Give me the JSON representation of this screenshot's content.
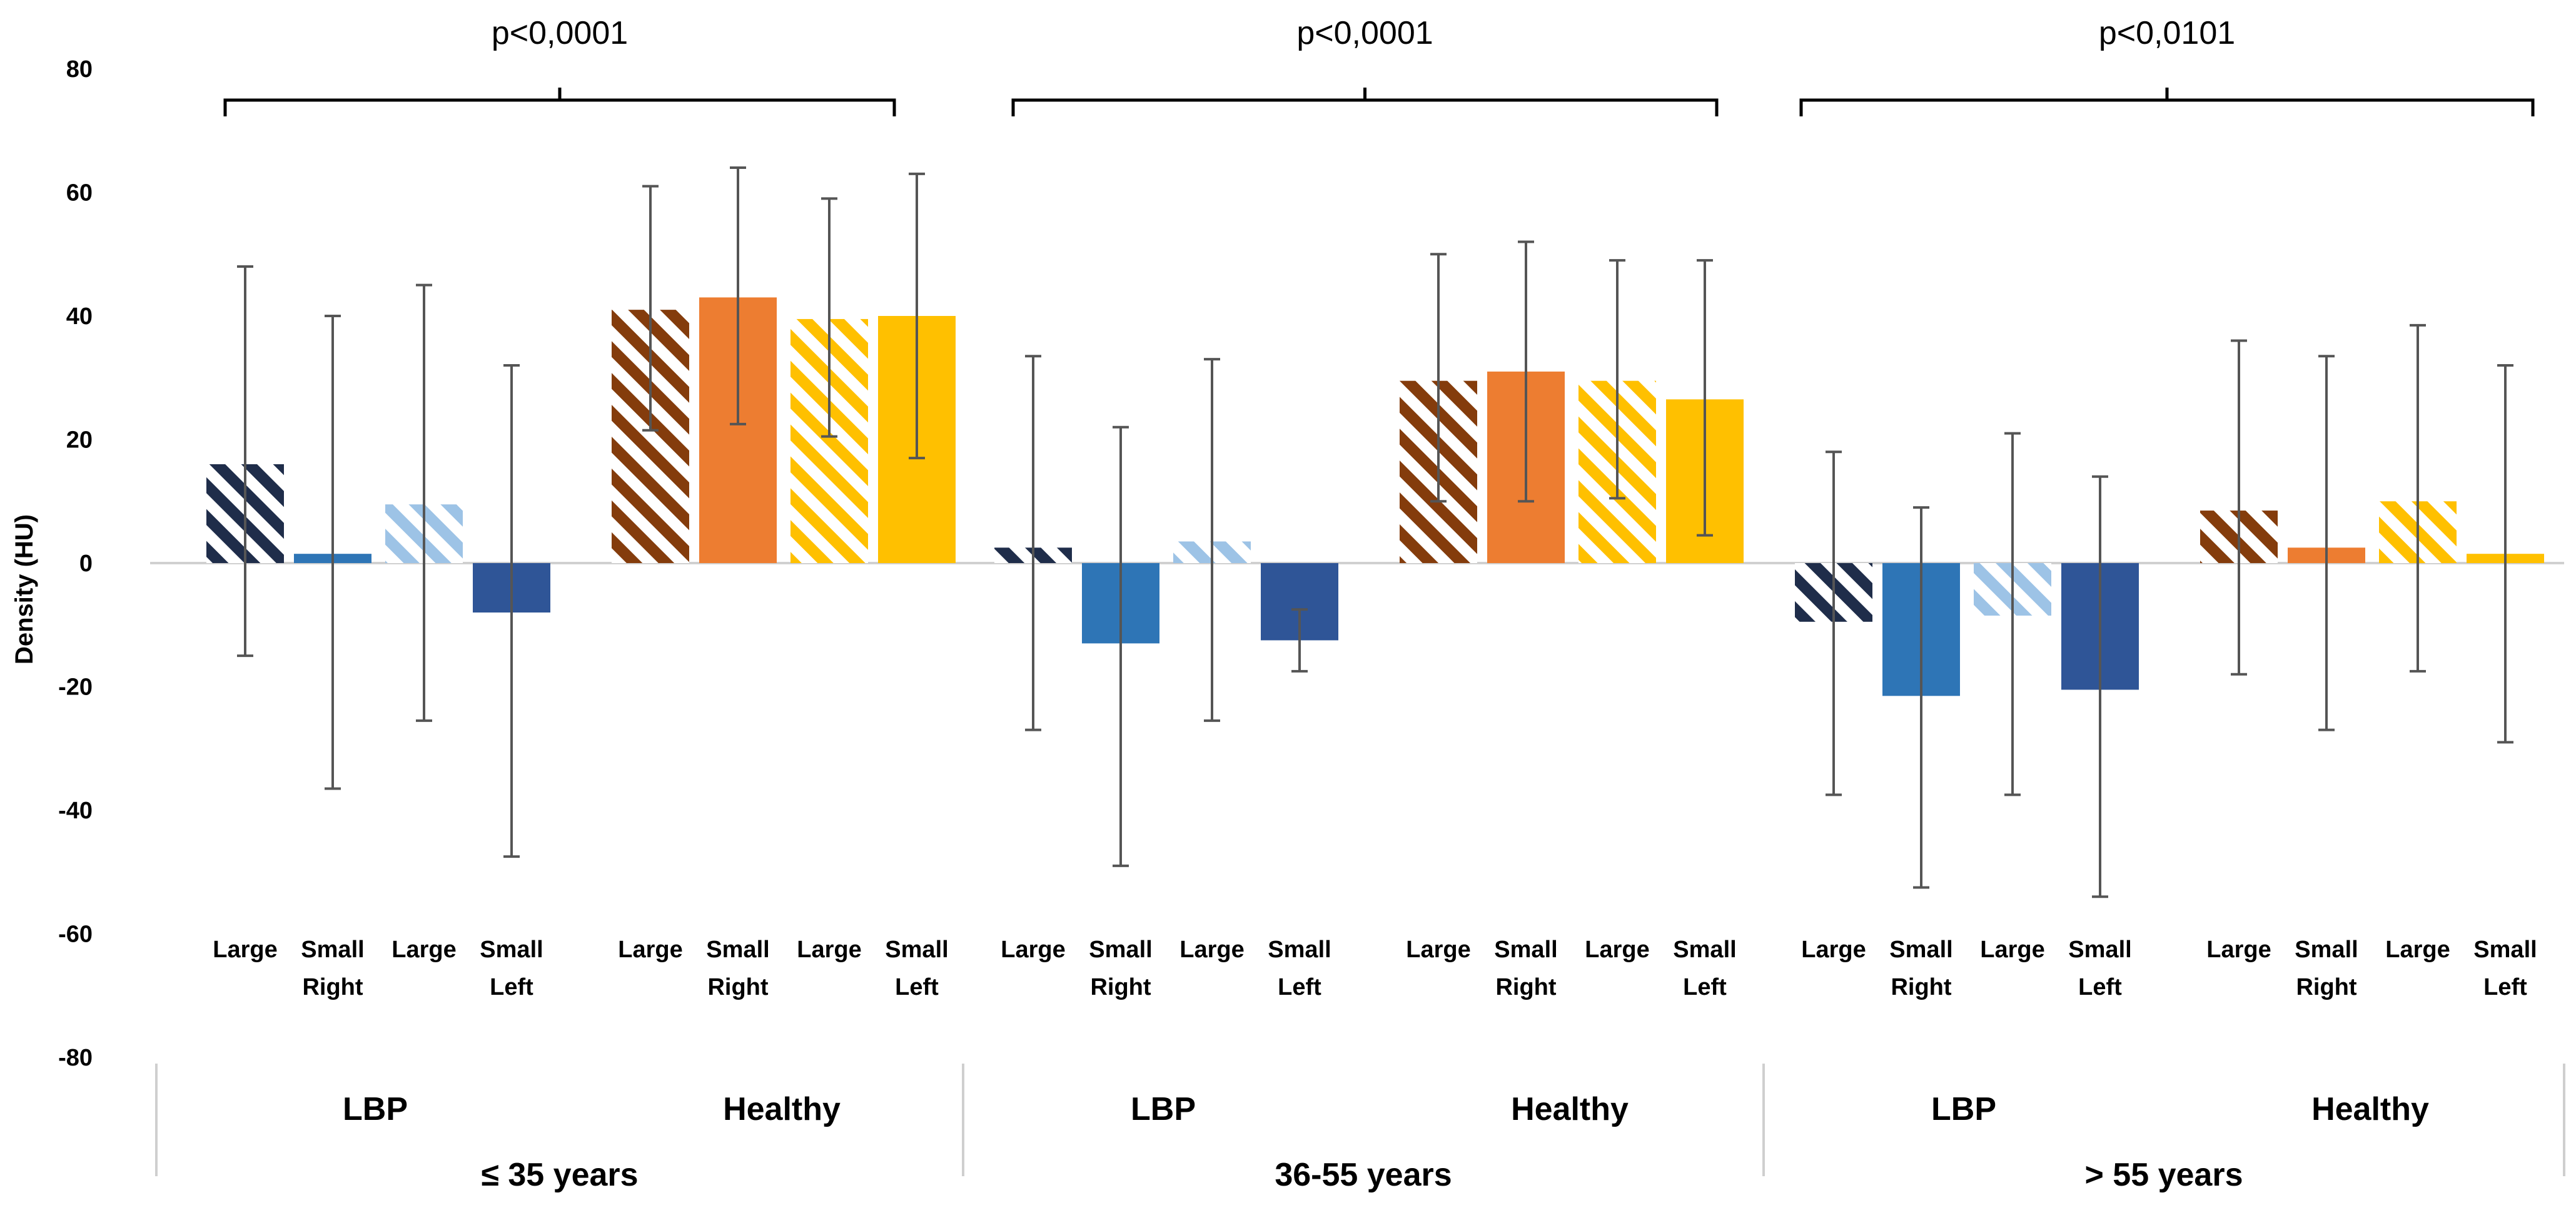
{
  "chart_data": {
    "type": "bar",
    "ylabel": "Density (HU)",
    "ylim": [
      -80,
      80
    ],
    "yticks": [
      80,
      60,
      40,
      20,
      0,
      -20,
      -40,
      -60,
      -80
    ],
    "bar_labels": [
      "Large",
      "Small",
      "Large",
      "Small"
    ],
    "side_labels": [
      "Right",
      "Left"
    ],
    "status_labels": [
      "LBP",
      "Healthy"
    ],
    "series": [
      {
        "name": "LBP Right Large",
        "color": "#1f2d4a",
        "hatch": true
      },
      {
        "name": "LBP Right Small",
        "color": "#2e75b6",
        "hatch": false
      },
      {
        "name": "LBP Left Large",
        "color": "#9dc3e6",
        "hatch": true
      },
      {
        "name": "LBP Left Small",
        "color": "#2f5597",
        "hatch": false
      },
      {
        "name": "Healthy Right Large",
        "color": "#843c0c",
        "hatch": true
      },
      {
        "name": "Healthy Right Small",
        "color": "#ed7d31",
        "hatch": false
      },
      {
        "name": "Healthy Left Large",
        "color": "#ffc000",
        "hatch": true
      },
      {
        "name": "Healthy Left Small",
        "color": "#ffc000",
        "hatch": false
      }
    ],
    "age_groups": [
      {
        "label": "≤ 35 years",
        "p_value": "p<0,0001",
        "values": [
          16,
          1.5,
          9.5,
          -8,
          41,
          43,
          39.5,
          40
        ],
        "err_low": [
          -15,
          -36.5,
          -25.5,
          -47.5,
          21.5,
          22.5,
          20.5,
          17
        ],
        "err_high": [
          48,
          40,
          45,
          32,
          61,
          64,
          59,
          63
        ]
      },
      {
        "label": "36-55 years",
        "p_value": "p<0,0001",
        "values": [
          2.5,
          -13,
          3.5,
          -12.5,
          29.5,
          31,
          29.5,
          26.5
        ],
        "err_low": [
          -27,
          -49,
          -25.5,
          -17.5,
          10,
          10,
          10.5,
          4.5
        ],
        "err_high": [
          33.5,
          22,
          33,
          -7.5,
          50,
          52,
          49,
          49
        ]
      },
      {
        "label": "> 55 years",
        "p_value": "p<0,0101",
        "values": [
          -9.5,
          -21.5,
          -8.5,
          -20.5,
          8.5,
          2.5,
          10,
          1.5
        ],
        "err_low": [
          -37.5,
          -52.5,
          -37.5,
          -54,
          -18,
          -27,
          -17.5,
          -29
        ],
        "err_high": [
          18,
          9,
          21,
          14,
          36,
          33.5,
          38.5,
          32
        ]
      }
    ]
  }
}
